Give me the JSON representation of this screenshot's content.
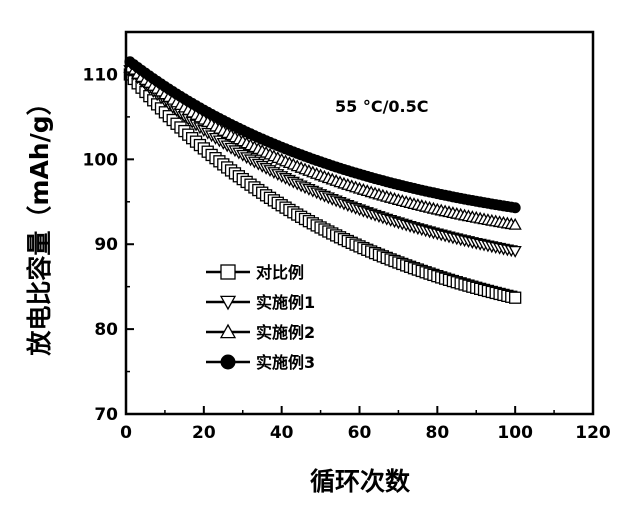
{
  "chart_data": {
    "type": "scatter",
    "title": "",
    "annotation": "55 °C/0.5C",
    "xlabel": "循环次数",
    "ylabel": "放电比容量（mAh/g）",
    "xlim": [
      0,
      120
    ],
    "ylim": [
      70,
      115
    ],
    "xticks": [
      0,
      20,
      40,
      60,
      80,
      100,
      120
    ],
    "yticks": [
      70,
      80,
      90,
      100,
      110
    ],
    "grid": false,
    "legend_position": "bottom-left",
    "series": [
      {
        "name": "对比例",
        "marker": "open-square",
        "start": 110.0,
        "end": 83.7
      },
      {
        "name": "实施例1",
        "marker": "open-triangle-down",
        "start": 110.5,
        "end": 89.2
      },
      {
        "name": "实施例2",
        "marker": "open-triangle-up",
        "start": 110.8,
        "end": 92.3
      },
      {
        "name": "实施例3",
        "marker": "filled-circle",
        "start": 111.5,
        "end": 94.3
      }
    ],
    "x_range": [
      1,
      100
    ]
  }
}
